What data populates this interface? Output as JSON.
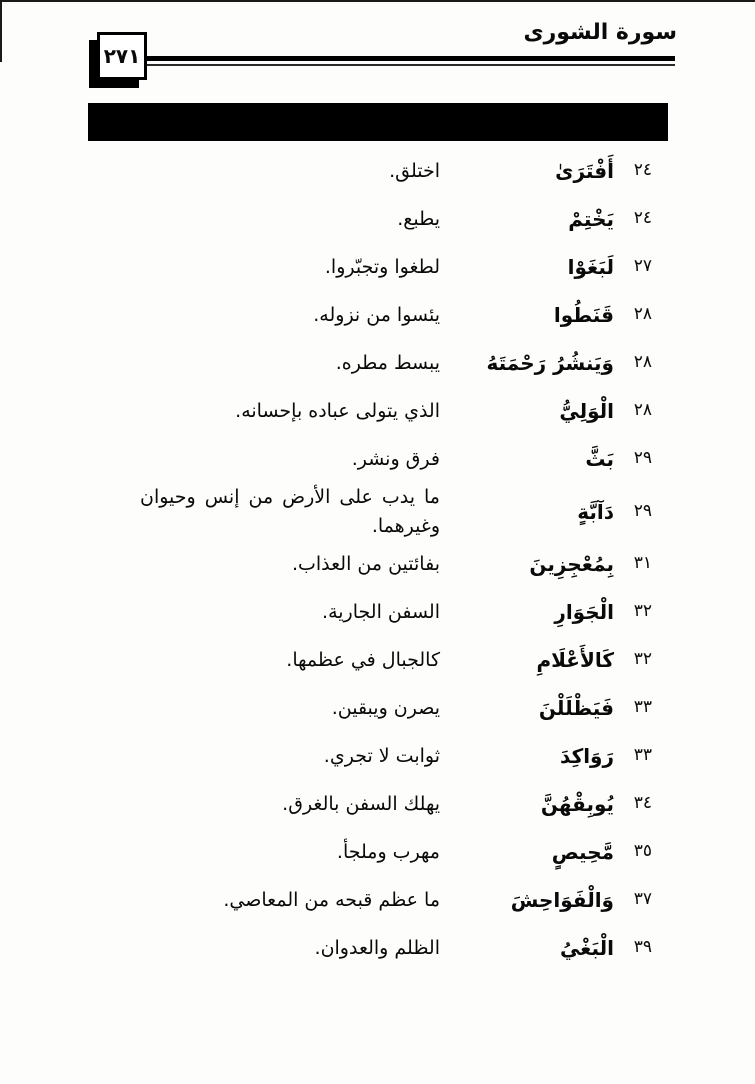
{
  "page": {
    "number": "٢٧١",
    "surah_title": "سورة الشورى"
  },
  "colors": {
    "ink": "#000000",
    "paper": "#fdfdfc"
  },
  "vocab": {
    "rows": [
      {
        "verse": "٢٤",
        "word": "أَفْتَرَىٰ",
        "meaning": "اختلق."
      },
      {
        "verse": "٢٤",
        "word": "يَخْتِمْ",
        "meaning": "يطبع."
      },
      {
        "verse": "٢٧",
        "word": "لَبَغَوْا",
        "meaning": "لطغوا وتجبّروا."
      },
      {
        "verse": "٢٨",
        "word": "قَنَطُوا",
        "meaning": "يئسوا من نزوله."
      },
      {
        "verse": "٢٨",
        "word": "وَيَنشُرُ رَحْمَتَهُ",
        "meaning": "يبسط مطره."
      },
      {
        "verse": "٢٨",
        "word": "الْوَلِيُّ",
        "meaning": "الذي يتولى عباده بإحسانه."
      },
      {
        "verse": "٢٩",
        "word": "بَثَّ",
        "meaning": "فرق ونشر."
      },
      {
        "verse": "٢٩",
        "word": "دَآبَّةٍ",
        "meaning": "ما يدب على الأرض من إنس وحيوان وغيرهما."
      },
      {
        "verse": "٣١",
        "word": "بِمُعْجِزِينَ",
        "meaning": "بفائتين من العذاب."
      },
      {
        "verse": "٣٢",
        "word": "الْجَوَارِ",
        "meaning": "السفن الجارية."
      },
      {
        "verse": "٣٢",
        "word": "كَالأَعْلَامِ",
        "meaning": "كالجبال في عظمها."
      },
      {
        "verse": "٣٣",
        "word": "فَيَظْلَلْنَ",
        "meaning": "يصرن ويبقين."
      },
      {
        "verse": "٣٣",
        "word": "رَوَاكِدَ",
        "meaning": "ثوابت لا تجري."
      },
      {
        "verse": "٣٤",
        "word": "يُوبِقْهُنَّ",
        "meaning": "يهلك السفن بالغرق."
      },
      {
        "verse": "٣٥",
        "word": "مَّحِيصٍ",
        "meaning": "مهرب وملجأ."
      },
      {
        "verse": "٣٧",
        "word": "وَالْفَوَاحِشَ",
        "meaning": "ما عظم قبحه من المعاصي."
      },
      {
        "verse": "٣٩",
        "word": "الْبَغْيُ",
        "meaning": "الظلم والعدوان."
      }
    ]
  }
}
